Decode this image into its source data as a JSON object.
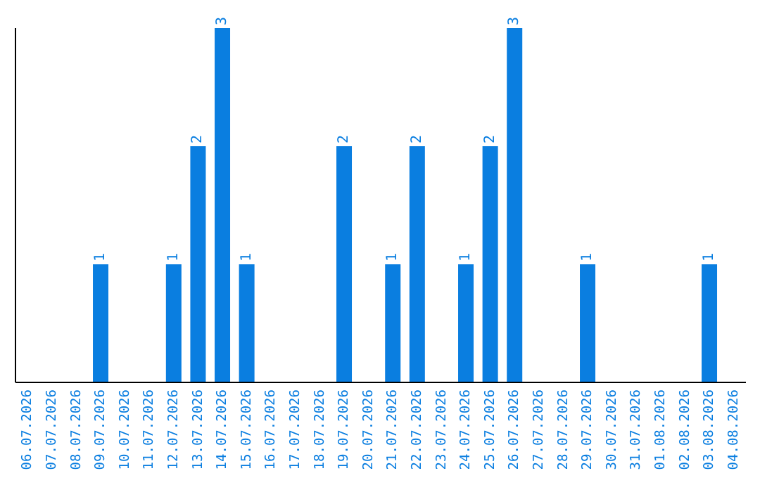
{
  "chart_data": {
    "type": "bar",
    "categories": [
      "06.07.2026",
      "07.07.2026",
      "08.07.2026",
      "09.07.2026",
      "10.07.2026",
      "11.07.2026",
      "12.07.2026",
      "13.07.2026",
      "14.07.2026",
      "15.07.2026",
      "16.07.2026",
      "17.07.2026",
      "18.07.2026",
      "19.07.2026",
      "20.07.2026",
      "21.07.2026",
      "22.07.2026",
      "23.07.2026",
      "24.07.2026",
      "25.07.2026",
      "26.07.2026",
      "27.07.2026",
      "28.07.2026",
      "29.07.2026",
      "30.07.2026",
      "31.07.2026",
      "01.08.2026",
      "02.08.2026",
      "03.08.2026",
      "04.08.2026"
    ],
    "values": [
      0,
      0,
      0,
      1,
      0,
      0,
      1,
      2,
      3,
      1,
      0,
      0,
      0,
      2,
      0,
      1,
      2,
      0,
      1,
      2,
      3,
      0,
      0,
      1,
      0,
      0,
      0,
      0,
      1,
      0
    ],
    "value_labels": [
      null,
      null,
      null,
      "1",
      null,
      null,
      "1",
      "2",
      "3",
      "1",
      null,
      null,
      null,
      "2",
      null,
      "1",
      "2",
      null,
      "1",
      "2",
      "3",
      null,
      null,
      "1",
      null,
      null,
      null,
      null,
      "1",
      null
    ],
    "color": "#0a7ee0",
    "ylim": [
      0,
      3
    ],
    "tick_labels": "x",
    "grid": false,
    "legend": false
  }
}
